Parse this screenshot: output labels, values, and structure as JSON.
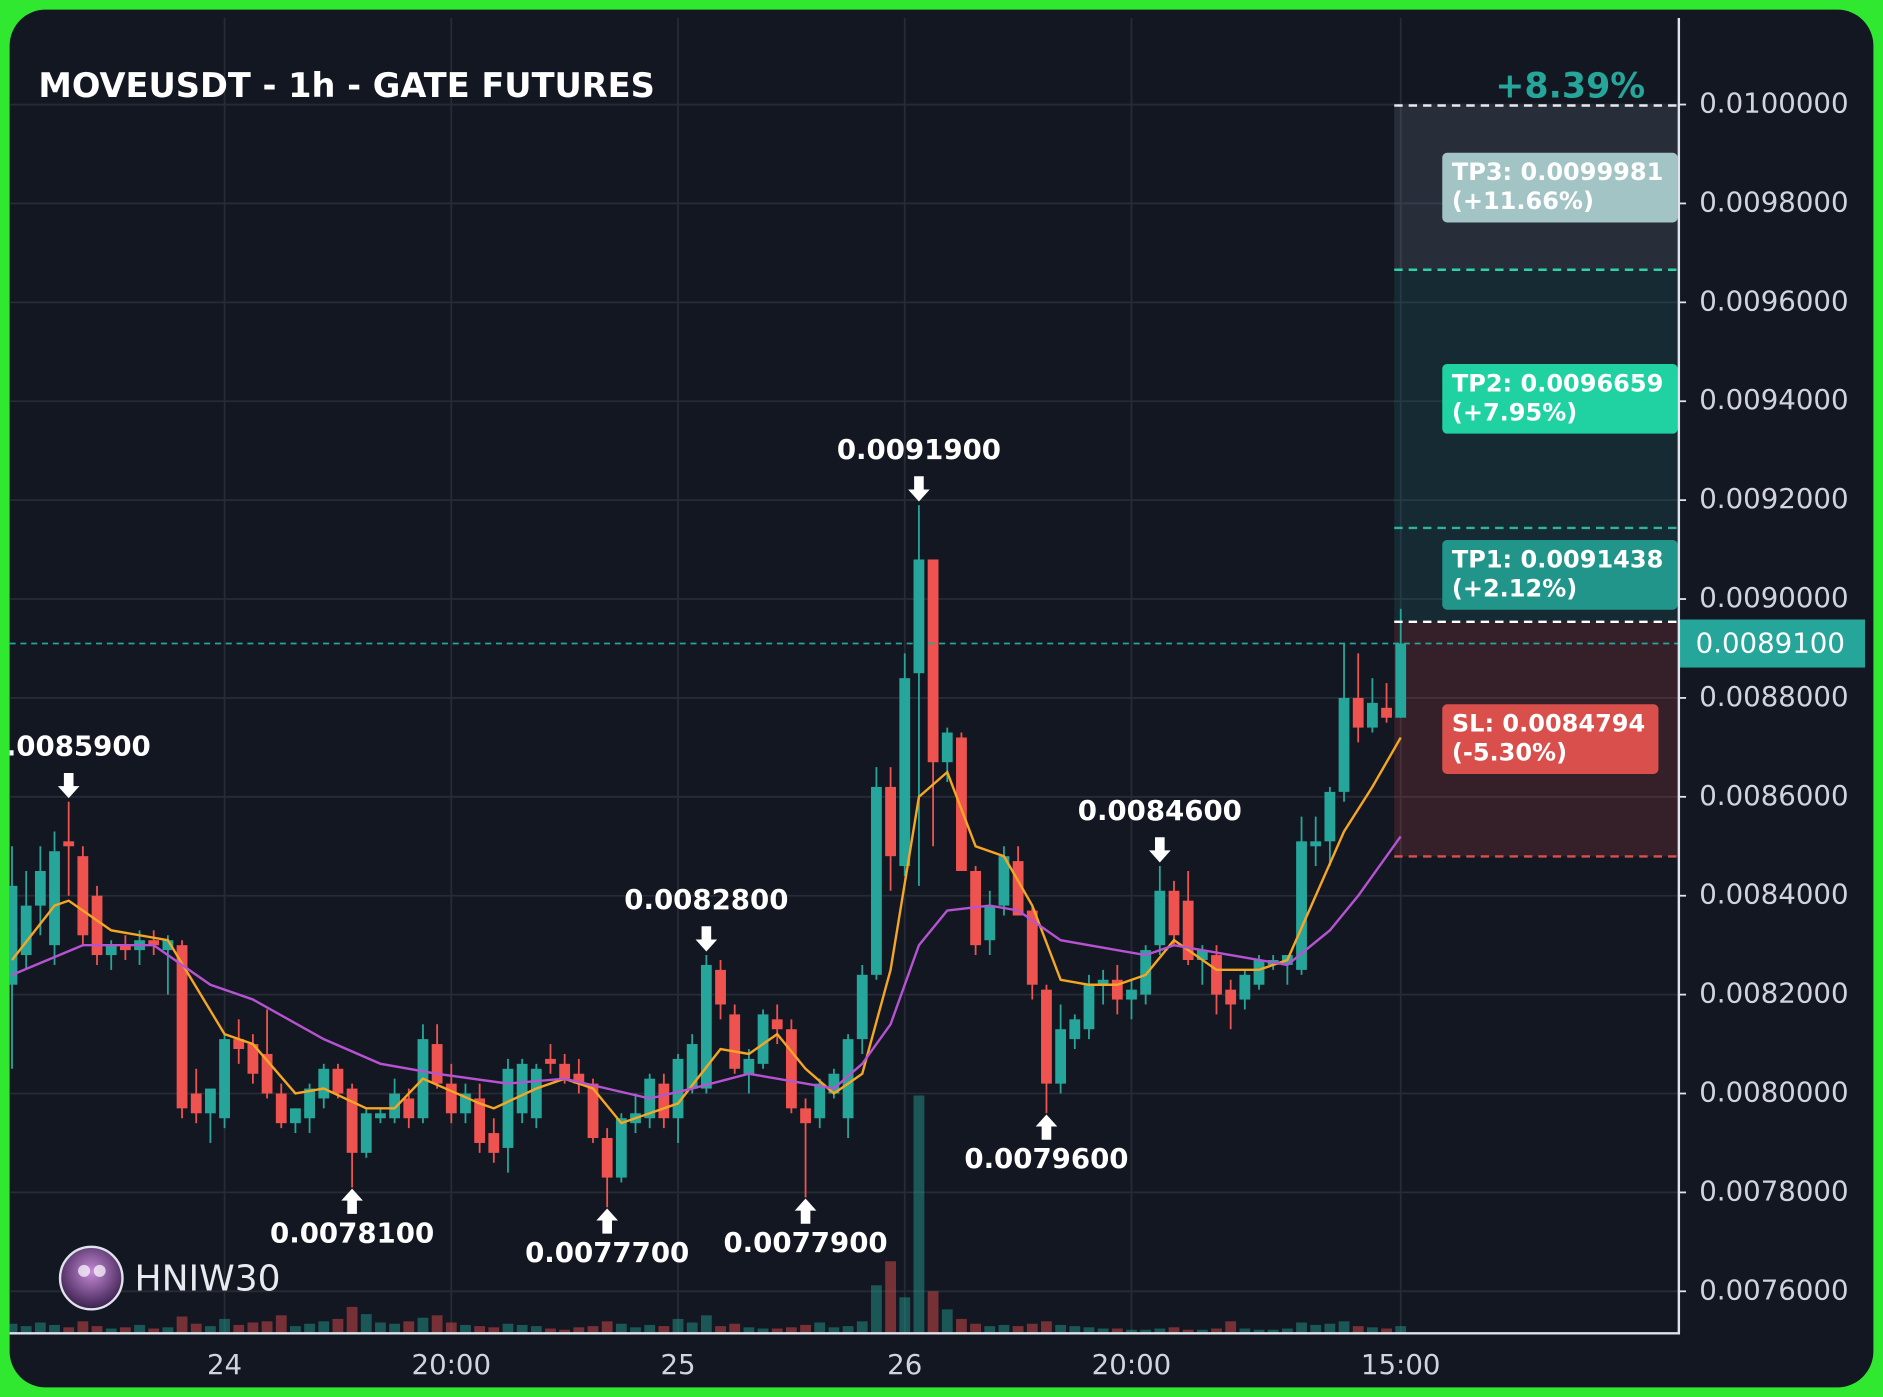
{
  "chart_data": {
    "type": "candlestick",
    "title": "MOVEUSDT - 1h - GATE FUTURES",
    "watermark": "HNIW30",
    "up_color": "#26a69a",
    "down_color": "#ef5350",
    "grid": true,
    "ylim": [
      0.007515,
      0.010175
    ],
    "yticks": [
      {
        "value": 0.0076,
        "label": "0.0076000"
      },
      {
        "value": 0.0078,
        "label": "0.0078000"
      },
      {
        "value": 0.008,
        "label": "0.0080000"
      },
      {
        "value": 0.0082,
        "label": "0.0082000"
      },
      {
        "value": 0.0084,
        "label": "0.0084000"
      },
      {
        "value": 0.0086,
        "label": "0.0086000"
      },
      {
        "value": 0.0088,
        "label": "0.0088000"
      },
      {
        "value": 0.009,
        "label": "0.0090000"
      },
      {
        "value": 0.0092,
        "label": "0.0092000"
      },
      {
        "value": 0.0094,
        "label": "0.0094000"
      },
      {
        "value": 0.0096,
        "label": "0.0096000"
      },
      {
        "value": 0.0098,
        "label": "0.0098000"
      },
      {
        "value": 0.01,
        "label": "0.0100000"
      }
    ],
    "categories": [
      null,
      null,
      null,
      null,
      null,
      null,
      null,
      null,
      null,
      null,
      null,
      null,
      null,
      null,
      null,
      "24",
      null,
      null,
      null,
      null,
      null,
      null,
      null,
      null,
      null,
      null,
      null,
      null,
      null,
      null,
      null,
      "20:00",
      null,
      null,
      null,
      null,
      null,
      null,
      null,
      null,
      null,
      null,
      null,
      null,
      null,
      null,
      null,
      "25",
      null,
      null,
      null,
      null,
      null,
      null,
      null,
      null,
      null,
      null,
      null,
      null,
      null,
      null,
      null,
      "26",
      null,
      null,
      null,
      null,
      null,
      null,
      null,
      null,
      null,
      null,
      null,
      null,
      null,
      null,
      null,
      "20:00",
      null,
      null,
      null,
      null,
      null,
      null,
      null,
      null,
      null,
      null,
      null,
      null,
      null,
      null,
      null,
      null,
      null,
      null,
      "15:00"
    ],
    "open": [
      0.00822,
      0.00828,
      0.00838,
      0.0083,
      0.00851,
      0.00848,
      0.0084,
      0.00828,
      0.0083,
      0.00829,
      0.00831,
      0.00829,
      0.0083,
      0.008,
      0.00796,
      0.00795,
      0.00811,
      0.0081,
      0.00808,
      0.008,
      0.00794,
      0.00795,
      0.00799,
      0.00805,
      0.00801,
      0.00788,
      0.00795,
      0.00795,
      0.00799,
      0.00795,
      0.0081,
      0.00802,
      0.00796,
      0.00799,
      0.00792,
      0.00789,
      0.00796,
      0.00795,
      0.00807,
      0.00806,
      0.00804,
      0.00802,
      0.00791,
      0.00783,
      0.00794,
      0.00795,
      0.00802,
      0.00795,
      0.00801,
      0.00801,
      0.00825,
      0.00816,
      0.00804,
      0.00806,
      0.00815,
      0.00813,
      0.00797,
      0.00795,
      0.008,
      0.00795,
      0.00811,
      0.00824,
      0.00862,
      0.00846,
      0.00885,
      0.00908,
      0.00867,
      0.00872,
      0.00845,
      0.00831,
      0.00838,
      0.00847,
      0.00837,
      0.00821,
      0.00802,
      0.00811,
      0.00813,
      0.00822,
      0.00823,
      0.00819,
      0.0082,
      0.0083,
      0.00841,
      0.00839,
      0.00827,
      0.00828,
      0.00821,
      0.00819,
      0.00822,
      0.00826,
      0.00826,
      0.00825,
      0.0085,
      0.00851,
      0.00861,
      0.0088,
      0.00874,
      0.00878,
      0.00876
    ],
    "high": [
      0.0085,
      0.00845,
      0.0085,
      0.00853,
      0.00859,
      0.0085,
      0.00842,
      0.00831,
      0.00832,
      0.00833,
      0.00833,
      0.00832,
      0.00831,
      0.00805,
      0.008,
      0.00812,
      0.00815,
      0.00812,
      0.00817,
      0.00802,
      0.00797,
      0.00802,
      0.00806,
      0.00806,
      0.00802,
      0.00797,
      0.00797,
      0.00803,
      0.00801,
      0.00814,
      0.00814,
      0.00806,
      0.00802,
      0.00802,
      0.00795,
      0.00807,
      0.00807,
      0.00806,
      0.0081,
      0.00808,
      0.00807,
      0.00803,
      0.00793,
      0.00796,
      0.008,
      0.00804,
      0.00804,
      0.00808,
      0.00812,
      0.00828,
      0.00827,
      0.00818,
      0.00809,
      0.00817,
      0.00818,
      0.00815,
      0.00799,
      0.00803,
      0.00805,
      0.00812,
      0.00826,
      0.00866,
      0.00866,
      0.00889,
      0.00919,
      0.00908,
      0.00874,
      0.00873,
      0.00846,
      0.00841,
      0.0085,
      0.0085,
      0.00838,
      0.00822,
      0.00818,
      0.00816,
      0.00824,
      0.00825,
      0.00826,
      0.00823,
      0.0083,
      0.00846,
      0.00843,
      0.00845,
      0.0083,
      0.0083,
      0.00823,
      0.00825,
      0.00828,
      0.00828,
      0.00828,
      0.00856,
      0.00856,
      0.00862,
      0.00891,
      0.00889,
      0.00884,
      0.00883,
      0.00898
    ],
    "low": [
      0.00805,
      0.00825,
      0.00832,
      0.00826,
      0.0084,
      0.0083,
      0.00826,
      0.00825,
      0.00827,
      0.00826,
      0.00828,
      0.0082,
      0.00795,
      0.00794,
      0.0079,
      0.00793,
      0.00806,
      0.00802,
      0.00799,
      0.00793,
      0.00792,
      0.00792,
      0.00797,
      0.00799,
      0.00781,
      0.00787,
      0.00794,
      0.00794,
      0.00793,
      0.00794,
      0.00801,
      0.00794,
      0.00794,
      0.00788,
      0.00786,
      0.00784,
      0.00794,
      0.00793,
      0.00804,
      0.00802,
      0.008,
      0.0079,
      0.00777,
      0.00782,
      0.00792,
      0.00793,
      0.00793,
      0.0079,
      0.008,
      0.008,
      0.00815,
      0.00804,
      0.008,
      0.00805,
      0.0081,
      0.00796,
      0.00779,
      0.00793,
      0.00799,
      0.00791,
      0.00808,
      0.00823,
      0.00841,
      0.00844,
      0.00842,
      0.0085,
      0.00863,
      0.00845,
      0.00828,
      0.00828,
      0.00836,
      0.00836,
      0.00819,
      0.00796,
      0.008,
      0.00809,
      0.00811,
      0.00818,
      0.00816,
      0.00815,
      0.00818,
      0.00828,
      0.0083,
      0.00826,
      0.00822,
      0.00816,
      0.00813,
      0.00817,
      0.00821,
      0.00825,
      0.00822,
      0.00824,
      0.00846,
      0.00846,
      0.00859,
      0.00871,
      0.00873,
      0.00875,
      0.00876
    ],
    "close": [
      0.00842,
      0.00838,
      0.00845,
      0.00849,
      0.0085,
      0.00832,
      0.00828,
      0.0083,
      0.00829,
      0.00831,
      0.0083,
      0.00831,
      0.00797,
      0.00796,
      0.00801,
      0.00811,
      0.00809,
      0.00804,
      0.008,
      0.00794,
      0.00797,
      0.00801,
      0.00805,
      0.008,
      0.00788,
      0.00796,
      0.00796,
      0.008,
      0.00795,
      0.00811,
      0.00802,
      0.00796,
      0.008,
      0.0079,
      0.00788,
      0.00805,
      0.00806,
      0.00805,
      0.00806,
      0.00803,
      0.00802,
      0.00791,
      0.00783,
      0.00795,
      0.00796,
      0.00803,
      0.00795,
      0.00807,
      0.0081,
      0.00826,
      0.00818,
      0.00805,
      0.00807,
      0.00816,
      0.00813,
      0.00797,
      0.00794,
      0.00802,
      0.00804,
      0.00811,
      0.00824,
      0.00862,
      0.00848,
      0.00884,
      0.00908,
      0.00867,
      0.00873,
      0.00845,
      0.0083,
      0.00838,
      0.00848,
      0.00836,
      0.00822,
      0.00802,
      0.00813,
      0.00815,
      0.00822,
      0.00823,
      0.00819,
      0.00821,
      0.00829,
      0.00841,
      0.00832,
      0.00827,
      0.00829,
      0.0082,
      0.00818,
      0.00824,
      0.00827,
      0.00827,
      0.00828,
      0.00851,
      0.00851,
      0.00861,
      0.0088,
      0.00874,
      0.00879,
      0.00876,
      0.00891
    ],
    "volume": [
      8,
      6,
      9,
      7,
      5,
      10,
      6,
      4,
      5,
      7,
      4,
      5,
      14,
      8,
      6,
      12,
      7,
      9,
      10,
      15,
      6,
      8,
      10,
      12,
      22,
      16,
      9,
      8,
      10,
      13,
      15,
      9,
      7,
      6,
      5,
      8,
      7,
      6,
      4,
      3,
      5,
      6,
      10,
      8,
      5,
      7,
      6,
      12,
      9,
      15,
      6,
      8,
      5,
      4,
      4,
      5,
      7,
      9,
      5,
      6,
      10,
      40,
      60,
      30,
      198,
      35,
      20,
      12,
      8,
      6,
      7,
      6,
      8,
      10,
      7,
      6,
      5,
      4,
      4,
      3,
      3,
      4,
      5,
      3,
      3,
      4,
      10,
      4,
      3,
      3,
      4,
      9,
      7,
      8,
      10,
      6,
      5,
      4,
      6
    ],
    "moving_averages": [
      {
        "color": "#f5a623",
        "x": [
          0,
          3,
          4,
          7,
          11,
          15,
          17,
          20,
          22,
          25,
          27,
          29,
          33,
          34,
          37,
          39,
          41,
          43,
          45,
          47,
          50,
          52,
          54,
          56,
          58,
          60,
          62,
          64,
          66,
          68,
          70,
          72,
          74,
          76,
          78,
          80,
          82,
          85,
          88,
          90,
          92,
          94,
          96,
          98
        ],
        "values": [
          0.00827,
          0.00838,
          0.00839,
          0.00833,
          0.00831,
          0.00812,
          0.0081,
          0.008,
          0.00801,
          0.00797,
          0.00797,
          0.00803,
          0.00798,
          0.00797,
          0.00801,
          0.00803,
          0.00801,
          0.00794,
          0.00796,
          0.00798,
          0.00809,
          0.00808,
          0.00812,
          0.00805,
          0.008,
          0.00804,
          0.00825,
          0.0086,
          0.00865,
          0.0085,
          0.00848,
          0.00838,
          0.00823,
          0.00822,
          0.00822,
          0.00824,
          0.00831,
          0.00825,
          0.00825,
          0.00827,
          0.0084,
          0.00853,
          0.00862,
          0.00872
        ]
      },
      {
        "color": "#b553d1",
        "x": [
          0,
          5,
          10,
          14,
          17,
          22,
          26,
          30,
          35,
          39,
          45,
          48,
          52,
          56,
          58,
          60,
          62,
          64,
          66,
          69,
          71,
          74,
          78,
          80,
          82,
          86,
          90,
          93,
          95,
          98
        ],
        "values": [
          0.00824,
          0.0083,
          0.0083,
          0.00822,
          0.00819,
          0.00811,
          0.00806,
          0.00804,
          0.00802,
          0.00803,
          0.00799,
          0.00801,
          0.00804,
          0.00802,
          0.00801,
          0.00806,
          0.00814,
          0.0083,
          0.00837,
          0.00838,
          0.00837,
          0.00831,
          0.00829,
          0.00828,
          0.0083,
          0.00828,
          0.00826,
          0.00833,
          0.0084,
          0.00852
        ]
      }
    ],
    "annotations": [
      {
        "index": 4,
        "value": 0.00859,
        "label": "0.0085900",
        "side": "above"
      },
      {
        "index": 24,
        "value": 0.00781,
        "label": "0.0078100",
        "side": "below"
      },
      {
        "index": 42,
        "value": 0.00777,
        "label": "0.0077700",
        "side": "below"
      },
      {
        "index": 49,
        "value": 0.00828,
        "label": "0.0082800",
        "side": "above"
      },
      {
        "index": 56,
        "value": 0.00779,
        "label": "0.0077900",
        "side": "below"
      },
      {
        "index": 64,
        "value": 0.00919,
        "label": "0.0091900",
        "side": "above"
      },
      {
        "index": 73,
        "value": 0.00796,
        "label": "0.0079600",
        "side": "below"
      },
      {
        "index": 81,
        "value": 0.00846,
        "label": "0.0084600",
        "side": "above"
      }
    ],
    "last_price": {
      "value": 0.00891,
      "label": "0.0089100",
      "color": "#26a69a"
    },
    "trade": {
      "entry": 0.008954,
      "summary": "+8.39%",
      "targets": [
        {
          "value": 0.0099981,
          "label": "TP3: 0.0099981",
          "change": "(+11.66%)",
          "color": "#a3c4c4"
        },
        {
          "value": 0.0096659,
          "label": "TP2: 0.0096659",
          "change": "(+7.95%)",
          "color": "#20d1a1"
        },
        {
          "value": 0.0091438,
          "label": "TP1: 0.0091438",
          "change": "(+2.12%)",
          "color": "#22958a"
        }
      ],
      "stop": {
        "value": 0.0084794,
        "label": "SL: 0.0084794",
        "change": "(-5.30%)",
        "color": "#d94f4c"
      }
    }
  }
}
